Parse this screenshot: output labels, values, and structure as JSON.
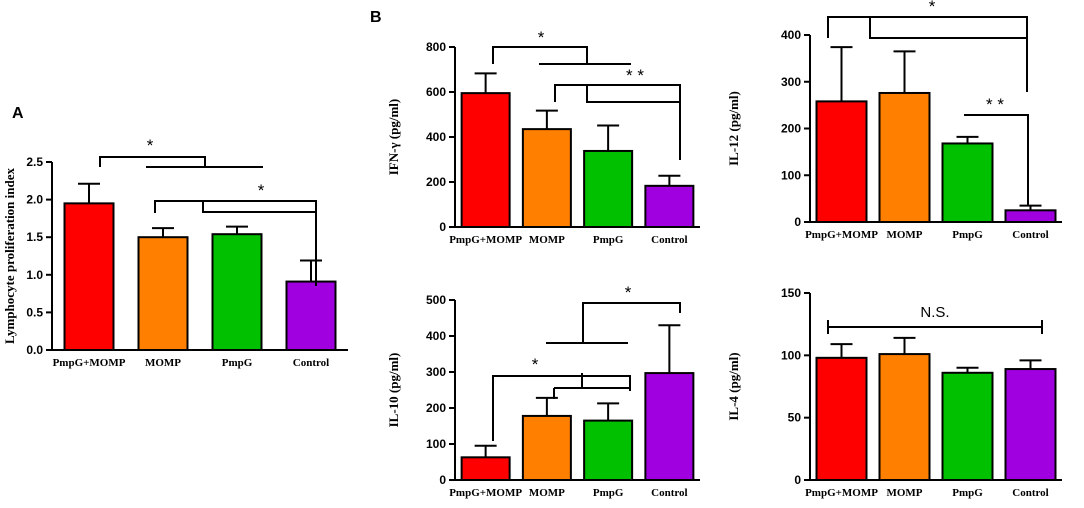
{
  "panel_labels": {
    "a": "A",
    "b": "B"
  },
  "colors": {
    "red": "#ff0000",
    "orange": "#ff8000",
    "green": "#00c000",
    "purple": "#a000e0"
  },
  "chart_data": [
    {
      "id": "lymph",
      "type": "bar",
      "title": "",
      "xlabel": "",
      "ylabel": "Lymphocyte proliferation index",
      "categories": [
        "PmpG+MOMP",
        "MOMP",
        "PmpG",
        "Control"
      ],
      "values": [
        1.95,
        1.5,
        1.54,
        0.91
      ],
      "errors": [
        0.26,
        0.12,
        0.1,
        0.28
      ],
      "ylim": [
        0,
        2.5
      ],
      "yticks": [
        "0.0",
        "0.5",
        "1.0",
        "1.5",
        "2.0",
        "2.5"
      ],
      "significance": [
        "*",
        "*"
      ],
      "legend": "none"
    },
    {
      "id": "ifng",
      "type": "bar",
      "title": "",
      "xlabel": "",
      "ylabel": "IFN-γ (pg/ml)",
      "categories": [
        "PmpG+MOMP",
        "MOMP",
        "PmpG",
        "Control"
      ],
      "values": [
        595,
        435,
        338,
        183
      ],
      "errors": [
        88,
        82,
        113,
        45
      ],
      "ylim": [
        0,
        800
      ],
      "yticks": [
        "0",
        "200",
        "400",
        "600",
        "800"
      ],
      "significance": [
        "*",
        "* *"
      ],
      "legend": "none"
    },
    {
      "id": "il12",
      "type": "bar",
      "title": "",
      "xlabel": "",
      "ylabel": "IL-12 (pg/ml)",
      "categories": [
        "PmpG+MOMP",
        "MOMP",
        "PmpG",
        "Control"
      ],
      "values": [
        258,
        276,
        168,
        25
      ],
      "errors": [
        116,
        89,
        14,
        10
      ],
      "ylim": [
        0,
        400
      ],
      "yticks": [
        "0",
        "100",
        "200",
        "300",
        "400"
      ],
      "significance": [
        "*",
        "* *"
      ],
      "legend": "none"
    },
    {
      "id": "il10",
      "type": "bar",
      "title": "",
      "xlabel": "",
      "ylabel": "IL-10 (pg/ml)",
      "categories": [
        "PmpG+MOMP",
        "MOMP",
        "PmpG",
        "Control"
      ],
      "values": [
        63,
        178,
        165,
        297
      ],
      "errors": [
        32,
        50,
        48,
        133
      ],
      "ylim": [
        0,
        500
      ],
      "yticks": [
        "0",
        "100",
        "200",
        "300",
        "400",
        "500"
      ],
      "significance": [
        "*",
        "*"
      ],
      "legend": "none"
    },
    {
      "id": "il4",
      "type": "bar",
      "title": "",
      "xlabel": "",
      "ylabel": "IL-4 (pg/ml)",
      "categories": [
        "PmpG+MOMP",
        "MOMP",
        "PmpG",
        "Control"
      ],
      "values": [
        98,
        101,
        86,
        89
      ],
      "errors": [
        11,
        13,
        4,
        7
      ],
      "ylim": [
        0,
        150
      ],
      "yticks": [
        "0",
        "50",
        "100",
        "150"
      ],
      "significance": [
        "N.S."
      ],
      "legend": "none"
    }
  ]
}
